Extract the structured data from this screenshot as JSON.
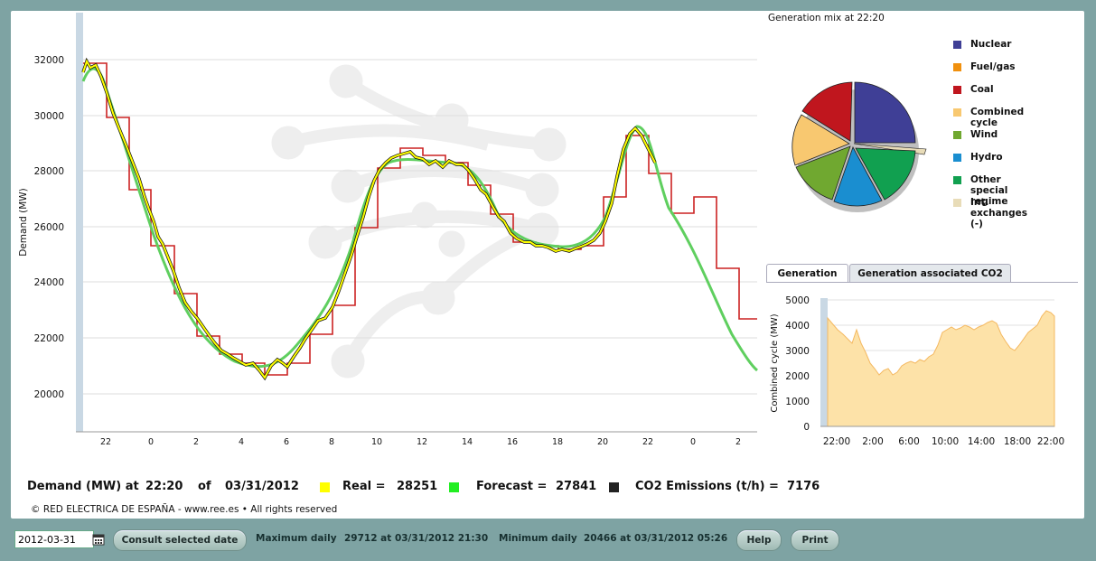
{
  "main_chart": {
    "ylabel": "Demand (MW)",
    "y_ticks": [
      "32000",
      "30000",
      "28000",
      "26000",
      "24000",
      "22000",
      "20000"
    ],
    "x_ticks": [
      "22",
      "0",
      "2",
      "4",
      "6",
      "8",
      "10",
      "12",
      "14",
      "16",
      "18",
      "20",
      "22",
      "0",
      "2"
    ],
    "colors": {
      "real": "#ffff00",
      "forecast": "#5fcf5f",
      "scheduled": "#d02020",
      "black": "#111111"
    }
  },
  "pie": {
    "title": "Generation mix at 22:20",
    "legend": [
      {
        "label": "Nuclear",
        "color": "#3f3f96"
      },
      {
        "label": "Fuel/gas",
        "color": "#f0900e"
      },
      {
        "label": "Coal",
        "color": "#c0161e"
      },
      {
        "label": "Combined cycle",
        "color": "#f8c870"
      },
      {
        "label": "Wind",
        "color": "#70a830"
      },
      {
        "label": "Hydro",
        "color": "#1a8ed0"
      },
      {
        "label": "Other special regime",
        "color": "#11a050"
      },
      {
        "label": "Int. exchanges (-)",
        "color": "#e8dcb8"
      }
    ]
  },
  "tabs": {
    "generation": "Generation",
    "co2": "Generation associated CO2"
  },
  "small_chart": {
    "ylabel": "Combined cycle (MW)",
    "y_ticks": [
      "5000",
      "4000",
      "3000",
      "2000",
      "1000",
      "0"
    ],
    "x_ticks": [
      "22:00",
      "2:00",
      "6:00",
      "10:00",
      "14:00",
      "18:00",
      "22:00"
    ]
  },
  "status": {
    "demand_label": "Demand (MW) at",
    "time": "22:20",
    "of_label": "of",
    "date": "03/31/2012",
    "real_label": "Real =",
    "real_value": "28251",
    "forecast_label": "Forecast =",
    "forecast_value": "27841",
    "co2_label": "CO2 Emissions (t/h) =",
    "co2_value": "7176"
  },
  "copyright": "© RED ELECTRICA DE ESPAÑA - www.ree.es • All rights reserved",
  "bottom": {
    "date_value": "2012-03-31",
    "consult_label": "Consult selected date",
    "max_label": "Maximum daily",
    "max_value": "29712 at 03/31/2012 21:30",
    "min_label": "Minimum daily",
    "min_value": "20466 at 03/31/2012 05:26",
    "help_label": "Help",
    "print_label": "Print"
  }
}
